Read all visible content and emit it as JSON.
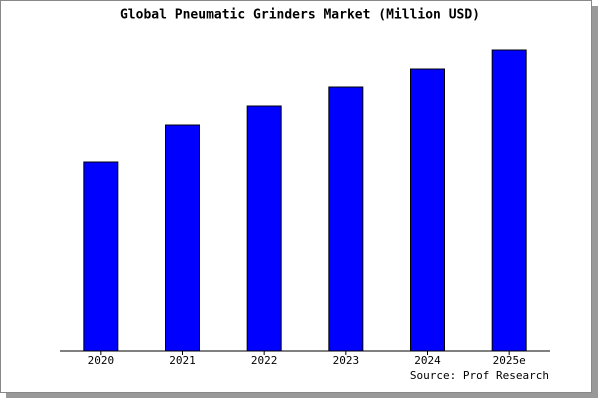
{
  "chart_data": {
    "type": "bar",
    "title": "Global Pneumatic Grinders Market (Million USD)",
    "categories": [
      "2020",
      "2021",
      "2022",
      "2023",
      "2024",
      "2025e"
    ],
    "values": [
      189,
      226,
      245,
      264,
      282,
      301
    ],
    "color": "#0000ff",
    "ylim": [
      0,
      303
    ],
    "source": "Source: Prof Research"
  }
}
